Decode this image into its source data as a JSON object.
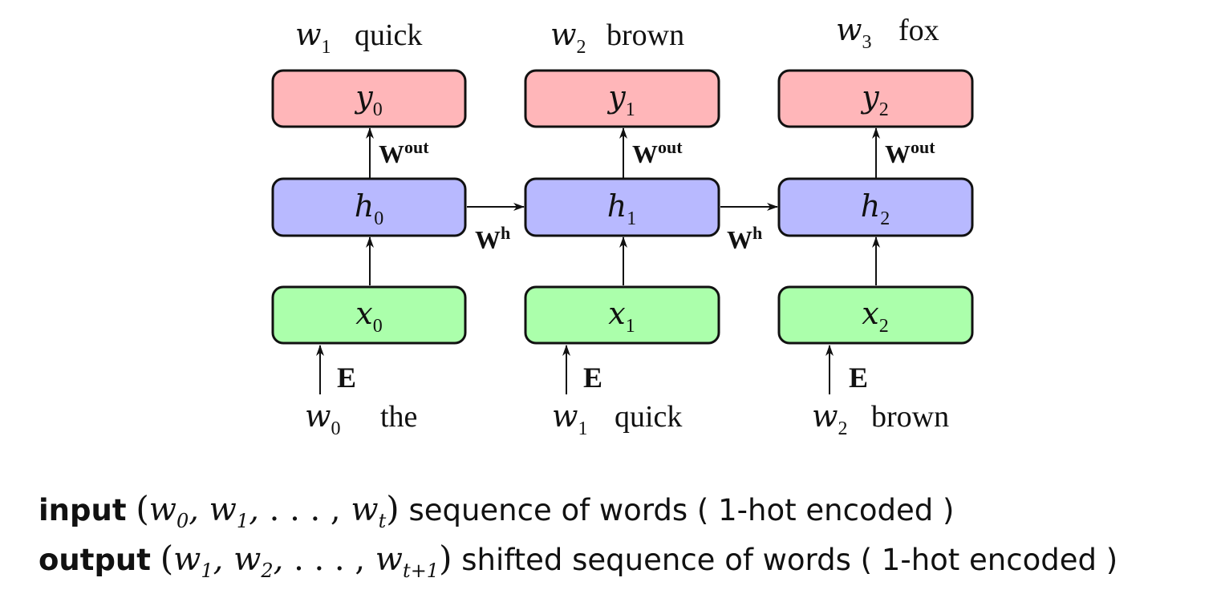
{
  "colors": {
    "output_box": "#ffb6b9",
    "hidden_box": "#b8b9ff",
    "input_box": "#abffab",
    "stroke": "#111111"
  },
  "steps": [
    {
      "out_var": "w",
      "out_sub": "1",
      "out_word": "quick",
      "y_var": "y",
      "y_sub": "0",
      "h_var": "h",
      "h_sub": "0",
      "x_var": "x",
      "x_sub": "0",
      "in_var": "w",
      "in_sub": "0",
      "in_word": "the"
    },
    {
      "out_var": "w",
      "out_sub": "2",
      "out_word": "brown",
      "y_var": "y",
      "y_sub": "1",
      "h_var": "h",
      "h_sub": "1",
      "x_var": "x",
      "x_sub": "1",
      "in_var": "w",
      "in_sub": "1",
      "in_word": "quick"
    },
    {
      "out_var": "w",
      "out_sub": "3",
      "out_word": "fox",
      "y_var": "y",
      "y_sub": "2",
      "h_var": "h",
      "h_sub": "2",
      "x_var": "x",
      "x_sub": "2",
      "in_var": "w",
      "in_sub": "2",
      "in_word": "brown"
    }
  ],
  "weights": {
    "out_base": "W",
    "out_sup": "out",
    "h_base": "W",
    "h_sup": "h",
    "embed": "E"
  },
  "legend": {
    "input": {
      "keyword": "input",
      "tuple": [
        {
          "v": "w",
          "s": "0"
        },
        {
          "v": "w",
          "s": "1"
        },
        {
          "v": "w",
          "s": "t"
        }
      ],
      "dots": ". . . ,",
      "desc": "sequence of words ( 1-hot encoded )"
    },
    "output": {
      "keyword": "output",
      "tuple": [
        {
          "v": "w",
          "s": "1"
        },
        {
          "v": "w",
          "s": "2"
        },
        {
          "v": "w",
          "s": "t+1"
        }
      ],
      "dots": ". . . ,",
      "desc": "shifted sequence of words ( 1-hot encoded )"
    }
  }
}
